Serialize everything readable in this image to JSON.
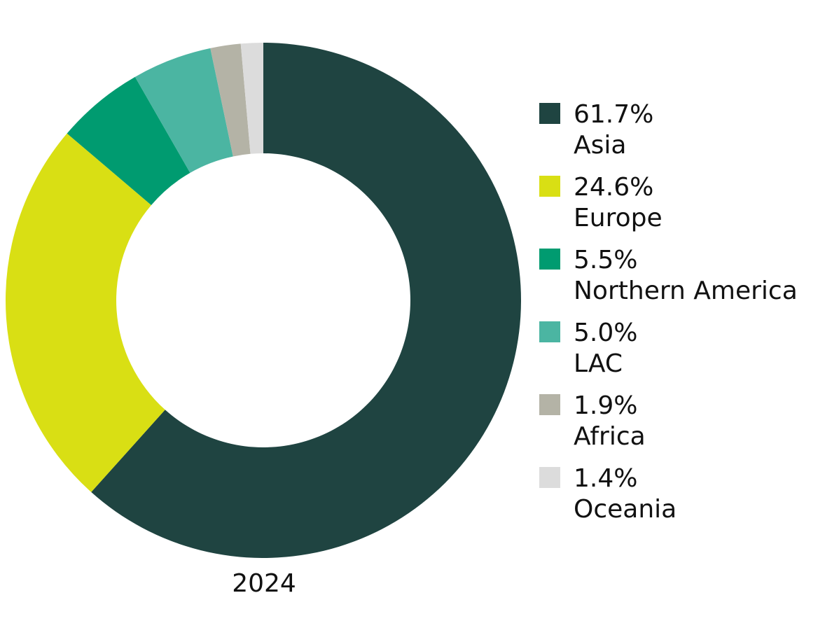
{
  "chart_data": {
    "type": "pie",
    "variant": "donut",
    "categories": [
      "Asia",
      "Europe",
      "Northern America",
      "LAC",
      "Africa",
      "Oceania"
    ],
    "values": [
      61.7,
      24.6,
      5.5,
      5.0,
      1.9,
      1.4
    ],
    "value_labels": [
      "61.7%",
      "24.6%",
      "5.5%",
      "5.0%",
      "1.9%",
      "1.4%"
    ],
    "unit": "%",
    "colors": [
      "#1f4441",
      "#d9df14",
      "#009b70",
      "#4bb5a2",
      "#b4b3a6",
      "#dcdcdc"
    ],
    "year_label": "2024",
    "legend_position": "right",
    "start_angle": "top",
    "direction": "clockwise"
  }
}
